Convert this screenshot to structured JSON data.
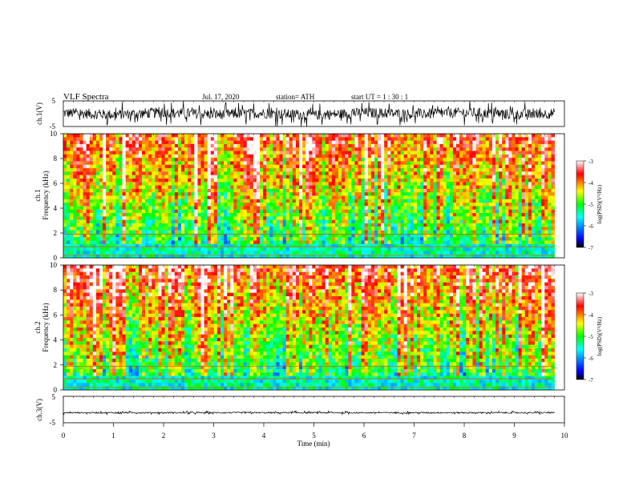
{
  "header": {
    "title": "VLF  Spectra",
    "date": "Jul.  17,  2020",
    "station": "station= ATH",
    "start": "start  UT  =    1  : 30 : 1"
  },
  "colors": {
    "spectrum_scale": [
      "#000000",
      "#0000ff",
      "#00ffff",
      "#00ff00",
      "#ffff00",
      "#ff0000",
      "#ffffff"
    ],
    "waveform": "#000000"
  },
  "chart_data": [
    {
      "type": "line",
      "title": "",
      "xlabel": "",
      "ylabel": "ch.1(V)",
      "xlim": [
        0,
        10
      ],
      "ylim": [
        -5,
        5
      ],
      "yticks": [
        "5",
        "-5"
      ],
      "series": [
        {
          "x": [
            0,
            1,
            2,
            3,
            4,
            5,
            6,
            7,
            8,
            9,
            9.8
          ],
          "values": [
            0.3,
            -0.4,
            0.5,
            -0.3,
            0.2,
            -0.6,
            0.4,
            -0.2,
            0.5,
            -0.3,
            0.1
          ]
        }
      ]
    },
    {
      "type": "heatmap",
      "title": "",
      "ylabel": "ch.1\nFrequency (kHz)",
      "xlim": [
        0,
        10
      ],
      "x_data_end": 9.8,
      "ylim": [
        0,
        10
      ],
      "yticks": [
        "0",
        "2",
        "4",
        "6",
        "8",
        "10"
      ],
      "colorbar": {
        "label": "log(PSD)(V²/Hz)",
        "range": [
          -7,
          -3
        ],
        "ticks": [
          "-3",
          "-4",
          "-5",
          "-6",
          "-7"
        ]
      }
    },
    {
      "type": "heatmap",
      "title": "",
      "ylabel": "ch.2\nFrequency (kHz)",
      "xlim": [
        0,
        10
      ],
      "x_data_end": 9.8,
      "ylim": [
        0,
        10
      ],
      "yticks": [
        "0",
        "2",
        "4",
        "6",
        "8",
        "10"
      ],
      "colorbar": {
        "label": "log(PSD)(V²/Hz)",
        "range": [
          -7,
          -3
        ],
        "ticks": [
          "-3",
          "-4",
          "-5",
          "-6",
          "-7"
        ]
      }
    },
    {
      "type": "line",
      "title": "",
      "xlabel": "Time  (min)",
      "ylabel": "ch.3(V)",
      "xlim": [
        0,
        10
      ],
      "ylim": [
        -5,
        5
      ],
      "yticks": [
        "5",
        "-5"
      ],
      "xticks": [
        "0",
        "1",
        "2",
        "3",
        "4",
        "5",
        "6",
        "7",
        "8",
        "9",
        "10"
      ],
      "series": [
        {
          "x": [
            0,
            9.8
          ],
          "values": [
            -1.2,
            -1.2
          ]
        }
      ]
    }
  ]
}
